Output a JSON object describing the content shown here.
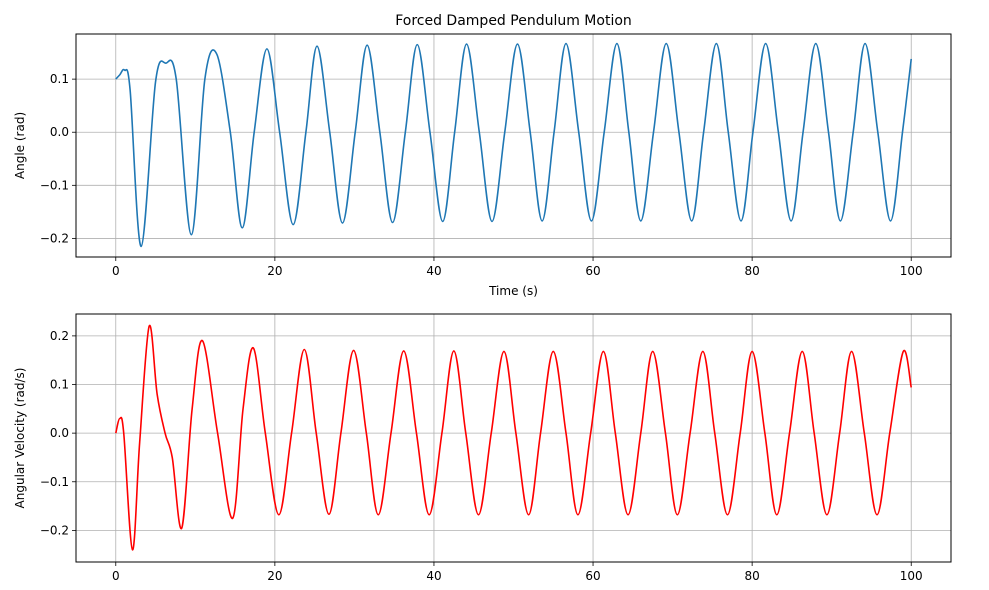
{
  "chart_data": [
    {
      "type": "line",
      "title": "Forced Damped Pendulum Motion",
      "xlabel": "Time (s)",
      "ylabel": "Angle (rad)",
      "xlim": [
        -5,
        105
      ],
      "ylim": [
        -0.235,
        0.185
      ],
      "xticks": [
        0,
        20,
        40,
        60,
        80,
        100
      ],
      "yticks": [
        -0.2,
        -0.1,
        0.0,
        0.1
      ],
      "xtick_labels": [
        "0",
        "20",
        "40",
        "60",
        "80",
        "100"
      ],
      "ytick_labels": [
        "−0.2",
        "−0.1",
        "0.0",
        "0.1"
      ],
      "grid": true,
      "series": [
        {
          "color": "#1f77b4",
          "x": [
            0,
            0.5,
            1.1,
            1.8,
            3.2,
            5.0,
            6.3,
            7.6,
            9.5,
            11.2,
            12.7,
            14.4,
            15.9,
            17.4,
            19.0,
            20.6,
            22.3,
            23.9,
            25.3,
            26.9,
            28.5,
            30.1,
            31.6,
            33.2,
            34.8,
            36.4,
            37.9,
            39.5,
            41.1,
            42.6,
            44.1,
            45.7,
            47.3,
            48.9,
            50.5,
            52.1,
            53.6,
            55.1,
            56.6,
            58.2,
            59.8,
            61.4,
            63.0,
            64.5,
            66.0,
            67.6,
            69.2,
            70.8,
            72.4,
            73.9,
            75.5,
            77.0,
            78.6,
            80.1,
            81.7,
            83.3,
            84.9,
            86.4,
            88.0,
            89.6,
            91.1,
            92.7,
            94.2,
            95.8,
            97.4,
            98.9,
            100
          ],
          "y": [
            0.1,
            0.108,
            0.117,
            0.08,
            -0.215,
            0.095,
            0.13,
            0.1,
            -0.193,
            0.1,
            0.147,
            0.0,
            -0.18,
            0.0,
            0.157,
            0.0,
            -0.174,
            0.0,
            0.162,
            0.0,
            -0.171,
            0.0,
            0.164,
            0.0,
            -0.17,
            0.0,
            0.165,
            0.0,
            -0.168,
            0.0,
            0.166,
            0.0,
            -0.168,
            0.0,
            0.166,
            0.0,
            -0.167,
            0.0,
            0.167,
            0.0,
            -0.167,
            0.0,
            0.167,
            0.0,
            -0.167,
            0.0,
            0.167,
            0.0,
            -0.167,
            0.0,
            0.167,
            0.0,
            -0.167,
            0.0,
            0.167,
            0.0,
            -0.167,
            0.0,
            0.167,
            0.0,
            -0.167,
            0.0,
            0.167,
            0.0,
            -0.167,
            0.0,
            0.138
          ]
        }
      ]
    },
    {
      "type": "line",
      "title": "",
      "xlabel": "Time (s)",
      "ylabel": "Angular Velocity (rad/s)",
      "xlim": [
        -5,
        105
      ],
      "ylim": [
        -0.265,
        0.245
      ],
      "xticks": [
        0,
        20,
        40,
        60,
        80,
        100
      ],
      "yticks": [
        -0.2,
        -0.1,
        0.0,
        0.1,
        0.2
      ],
      "xtick_labels": [
        "0",
        "20",
        "40",
        "60",
        "80",
        "100"
      ],
      "ytick_labels": [
        "−0.2",
        "−0.1",
        "0.0",
        "0.1",
        "0.2"
      ],
      "grid": true,
      "series": [
        {
          "color": "#ff0000",
          "x": [
            0,
            0.5,
            1.0,
            2.1,
            3.0,
            4.2,
            5.2,
            6.2,
            7.1,
            8.3,
            9.6,
            10.9,
            12.8,
            14.7,
            16.0,
            17.3,
            18.8,
            20.5,
            22.1,
            23.7,
            25.2,
            26.8,
            28.3,
            29.9,
            31.5,
            33.0,
            34.6,
            36.2,
            37.8,
            39.4,
            41.0,
            42.5,
            44.0,
            45.6,
            47.2,
            48.8,
            50.3,
            51.9,
            53.4,
            55.0,
            56.6,
            58.1,
            59.7,
            61.3,
            62.8,
            64.4,
            66.0,
            67.5,
            69.1,
            70.6,
            72.2,
            73.8,
            75.3,
            76.9,
            78.5,
            80.0,
            81.6,
            83.1,
            84.7,
            86.3,
            87.8,
            89.4,
            91.0,
            92.5,
            94.1,
            95.7,
            97.3,
            99.0,
            100
          ],
          "y": [
            0.0,
            0.03,
            0.0,
            -0.24,
            -0.02,
            0.22,
            0.08,
            0.0,
            -0.05,
            -0.195,
            0.05,
            0.19,
            0.0,
            -0.175,
            0.05,
            0.175,
            0.0,
            -0.168,
            0.0,
            0.172,
            0.0,
            -0.167,
            0.0,
            0.17,
            0.0,
            -0.168,
            0.0,
            0.169,
            0.0,
            -0.168,
            0.0,
            0.169,
            0.0,
            -0.168,
            0.0,
            0.168,
            0.0,
            -0.168,
            0.0,
            0.168,
            0.0,
            -0.168,
            0.0,
            0.168,
            0.0,
            -0.168,
            0.0,
            0.168,
            0.0,
            -0.168,
            0.0,
            0.168,
            0.0,
            -0.168,
            0.0,
            0.168,
            0.0,
            -0.168,
            0.0,
            0.168,
            0.0,
            -0.168,
            0.0,
            0.168,
            0.0,
            -0.168,
            0.0,
            0.168,
            0.094
          ]
        }
      ]
    }
  ]
}
